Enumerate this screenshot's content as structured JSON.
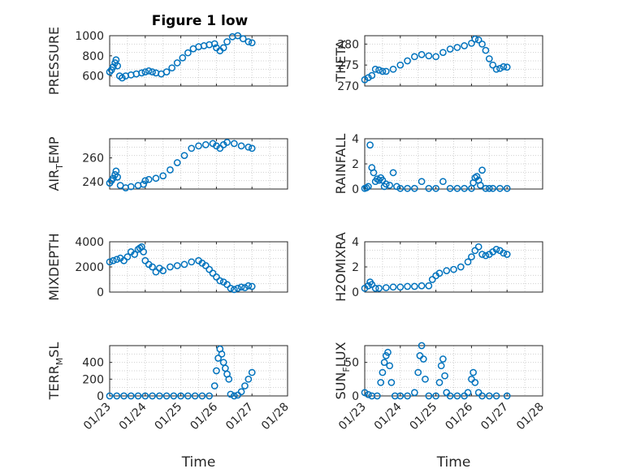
{
  "figure": {
    "title": "Figure 1 low"
  },
  "colors": {
    "marker": "#0072BD",
    "axis": "#262626",
    "grid": "#d0d0d0"
  },
  "xaxis": {
    "label": "Time",
    "ticks": [
      "01/23",
      "01/24",
      "01/25",
      "01/26",
      "01/27",
      "01/28"
    ]
  },
  "chart_data": [
    {
      "type": "scatter",
      "id": "pressure",
      "ylabel": "PRESSURE",
      "ylim": [
        500,
        1000
      ],
      "yticks": [
        600,
        800,
        1000
      ],
      "yticklabels": [
        "600",
        "800",
        "1000"
      ],
      "xlim": [
        0,
        5
      ],
      "x": [
        0,
        0.05,
        0.1,
        0.15,
        0.18,
        0.22,
        0.28,
        0.35,
        0.45,
        0.6,
        0.75,
        0.9,
        1.0,
        1.1,
        1.2,
        1.3,
        1.45,
        1.6,
        1.75,
        1.9,
        2.05,
        2.2,
        2.35,
        2.5,
        2.65,
        2.8,
        2.95,
        3.0,
        3.1,
        3.2,
        3.3,
        3.45,
        3.6,
        3.75,
        3.9,
        4.0
      ],
      "y": [
        640,
        660,
        690,
        730,
        760,
        700,
        600,
        580,
        600,
        610,
        620,
        630,
        640,
        650,
        640,
        630,
        620,
        640,
        680,
        730,
        780,
        830,
        870,
        890,
        900,
        910,
        920,
        880,
        850,
        880,
        940,
        990,
        1000,
        970,
        940,
        930
      ]
    },
    {
      "type": "scatter",
      "id": "theta",
      "ylabel": "THETA",
      "ylim": [
        270,
        282
      ],
      "yticks": [
        270,
        275,
        280
      ],
      "yticklabels": [
        "270",
        "275",
        "280"
      ],
      "xlim": [
        0,
        5
      ],
      "x": [
        0,
        0.1,
        0.2,
        0.3,
        0.4,
        0.5,
        0.6,
        0.8,
        1.0,
        1.2,
        1.4,
        1.6,
        1.8,
        2.0,
        2.2,
        2.4,
        2.6,
        2.8,
        3.0,
        3.1,
        3.2,
        3.3,
        3.4,
        3.5,
        3.6,
        3.7,
        3.8,
        3.9,
        4.0
      ],
      "y": [
        271.5,
        272,
        272.5,
        274,
        273.8,
        273.5,
        273.5,
        274,
        275,
        276,
        277,
        277.5,
        277.2,
        277,
        278,
        278.8,
        279.2,
        279.6,
        280.2,
        281.2,
        281,
        280,
        278.5,
        276.5,
        275,
        274,
        274.2,
        274.6,
        274.5
      ]
    },
    {
      "type": "scatter",
      "id": "air_temp",
      "ylabel": "AIR",
      "ylabel_sub": "T",
      "ylabel_tail": "EMP",
      "ylim": [
        234,
        276
      ],
      "yticks": [
        240,
        260
      ],
      "yticklabels": [
        "240",
        "260"
      ],
      "xlim": [
        0,
        5
      ],
      "x": [
        0,
        0.05,
        0.1,
        0.15,
        0.18,
        0.22,
        0.3,
        0.45,
        0.6,
        0.8,
        0.95,
        1.0,
        1.1,
        1.3,
        1.5,
        1.7,
        1.9,
        2.1,
        2.3,
        2.5,
        2.7,
        2.9,
        3.0,
        3.1,
        3.2,
        3.3,
        3.5,
        3.7,
        3.9,
        4.0
      ],
      "y": [
        239,
        241,
        243,
        246,
        249,
        244,
        237,
        235,
        236,
        237,
        238,
        241,
        242,
        243,
        245,
        250,
        256,
        262,
        268,
        270,
        271,
        272,
        270,
        268,
        271,
        273,
        272,
        270,
        269,
        268
      ]
    },
    {
      "type": "scatter",
      "id": "rainfall",
      "ylabel": "RAINFALL",
      "ylim": [
        0,
        4
      ],
      "yticks": [
        0,
        2,
        4
      ],
      "yticklabels": [
        "0",
        "2",
        "4"
      ],
      "xlim": [
        0,
        5
      ],
      "x": [
        0,
        0.05,
        0.1,
        0.15,
        0.2,
        0.25,
        0.3,
        0.35,
        0.4,
        0.45,
        0.5,
        0.55,
        0.6,
        0.7,
        0.8,
        0.9,
        1.0,
        1.2,
        1.4,
        1.6,
        1.8,
        2.0,
        2.2,
        2.4,
        2.6,
        2.8,
        3.0,
        3.05,
        3.1,
        3.15,
        3.2,
        3.25,
        3.3,
        3.4,
        3.5,
        3.6,
        3.8,
        4.0
      ],
      "y": [
        0.05,
        0.1,
        0.2,
        3.5,
        1.7,
        1.3,
        0.6,
        0.8,
        0.7,
        0.9,
        0.7,
        0.2,
        0.4,
        0.3,
        1.3,
        0.2,
        0.05,
        0.05,
        0.05,
        0.6,
        0.05,
        0.05,
        0.6,
        0.05,
        0.05,
        0.05,
        0.05,
        0.5,
        0.9,
        1.0,
        0.7,
        0.3,
        1.5,
        0.05,
        0.05,
        0.05,
        0.05,
        0.05
      ]
    },
    {
      "type": "scatter",
      "id": "mixdepth",
      "ylabel": "MIXDEPTH",
      "ylim": [
        0,
        4000
      ],
      "yticks": [
        0,
        2000,
        4000
      ],
      "yticklabels": [
        "0",
        "2000",
        "4000"
      ],
      "xlim": [
        0,
        5
      ],
      "x": [
        0,
        0.1,
        0.2,
        0.3,
        0.4,
        0.5,
        0.6,
        0.7,
        0.8,
        0.85,
        0.9,
        0.95,
        1.0,
        1.1,
        1.2,
        1.3,
        1.4,
        1.5,
        1.7,
        1.9,
        2.1,
        2.3,
        2.5,
        2.6,
        2.7,
        2.8,
        2.9,
        3.0,
        3.1,
        3.2,
        3.3,
        3.4,
        3.5,
        3.6,
        3.7,
        3.8,
        3.9,
        4.0
      ],
      "y": [
        2400,
        2500,
        2600,
        2700,
        2500,
        2800,
        3200,
        3000,
        3400,
        3500,
        3600,
        3200,
        2500,
        2200,
        2000,
        1600,
        1900,
        1700,
        2000,
        2100,
        2200,
        2400,
        2500,
        2300,
        2100,
        1800,
        1500,
        1200,
        900,
        800,
        600,
        300,
        200,
        300,
        400,
        350,
        500,
        450
      ]
    },
    {
      "type": "scatter",
      "id": "h2omixra",
      "ylabel": "H2OMIXRA",
      "ylim": [
        0,
        4
      ],
      "yticks": [
        0,
        2,
        4
      ],
      "yticklabels": [
        "0",
        "2",
        "4"
      ],
      "xlim": [
        0,
        5
      ],
      "x": [
        0,
        0.1,
        0.15,
        0.2,
        0.3,
        0.4,
        0.6,
        0.8,
        1.0,
        1.2,
        1.4,
        1.6,
        1.8,
        1.9,
        2.0,
        2.1,
        2.3,
        2.5,
        2.7,
        2.9,
        3.0,
        3.1,
        3.2,
        3.3,
        3.4,
        3.5,
        3.6,
        3.7,
        3.8,
        3.9,
        4.0
      ],
      "y": [
        0.3,
        0.5,
        0.8,
        0.6,
        0.3,
        0.3,
        0.35,
        0.4,
        0.4,
        0.45,
        0.45,
        0.5,
        0.5,
        1.0,
        1.3,
        1.5,
        1.7,
        1.8,
        2.0,
        2.4,
        2.8,
        3.3,
        3.6,
        3.0,
        2.9,
        3.0,
        3.2,
        3.4,
        3.3,
        3.1,
        3.0
      ]
    },
    {
      "type": "scatter",
      "id": "terr_msl",
      "ylabel": "TERR",
      "ylabel_sub": "M",
      "ylabel_tail": "SL",
      "ylim": [
        0,
        600
      ],
      "yticks": [
        0,
        200,
        400
      ],
      "yticklabels": [
        "0",
        "200",
        "400"
      ],
      "xlim": [
        0,
        5
      ],
      "x": [
        0,
        0.2,
        0.4,
        0.6,
        0.8,
        1.0,
        1.2,
        1.4,
        1.6,
        1.8,
        2.0,
        2.2,
        2.4,
        2.6,
        2.8,
        2.95,
        3.0,
        3.05,
        3.1,
        3.15,
        3.2,
        3.25,
        3.3,
        3.35,
        3.4,
        3.5,
        3.6,
        3.7,
        3.8,
        3.9,
        4.0
      ],
      "y": [
        0,
        0,
        0,
        0,
        0,
        0,
        0,
        0,
        0,
        0,
        0,
        0,
        0,
        0,
        0,
        120,
        300,
        450,
        560,
        500,
        400,
        330,
        260,
        200,
        20,
        0,
        10,
        50,
        120,
        200,
        280
      ]
    },
    {
      "type": "scatter",
      "id": "sun_flux",
      "ylabel": "SUN",
      "ylabel_sub": "F",
      "ylabel_tail": "LUX",
      "ylim": [
        0,
        75
      ],
      "yticks": [
        0,
        50
      ],
      "yticklabels": [
        "0",
        "50"
      ],
      "xlim": [
        0,
        5
      ],
      "x": [
        0,
        0.1,
        0.2,
        0.35,
        0.45,
        0.5,
        0.55,
        0.6,
        0.65,
        0.7,
        0.75,
        0.85,
        1.0,
        1.2,
        1.4,
        1.5,
        1.55,
        1.6,
        1.65,
        1.7,
        1.8,
        2.0,
        2.1,
        2.15,
        2.2,
        2.25,
        2.3,
        2.4,
        2.6,
        2.8,
        2.9,
        3.0,
        3.05,
        3.1,
        3.2,
        3.3,
        3.5,
        3.7,
        4.0
      ],
      "y": [
        5,
        2,
        0,
        0,
        20,
        35,
        50,
        60,
        65,
        45,
        20,
        0,
        0,
        0,
        5,
        35,
        60,
        75,
        55,
        25,
        0,
        0,
        20,
        45,
        55,
        30,
        5,
        0,
        0,
        0,
        5,
        25,
        35,
        20,
        5,
        0,
        0,
        0,
        0
      ]
    }
  ]
}
